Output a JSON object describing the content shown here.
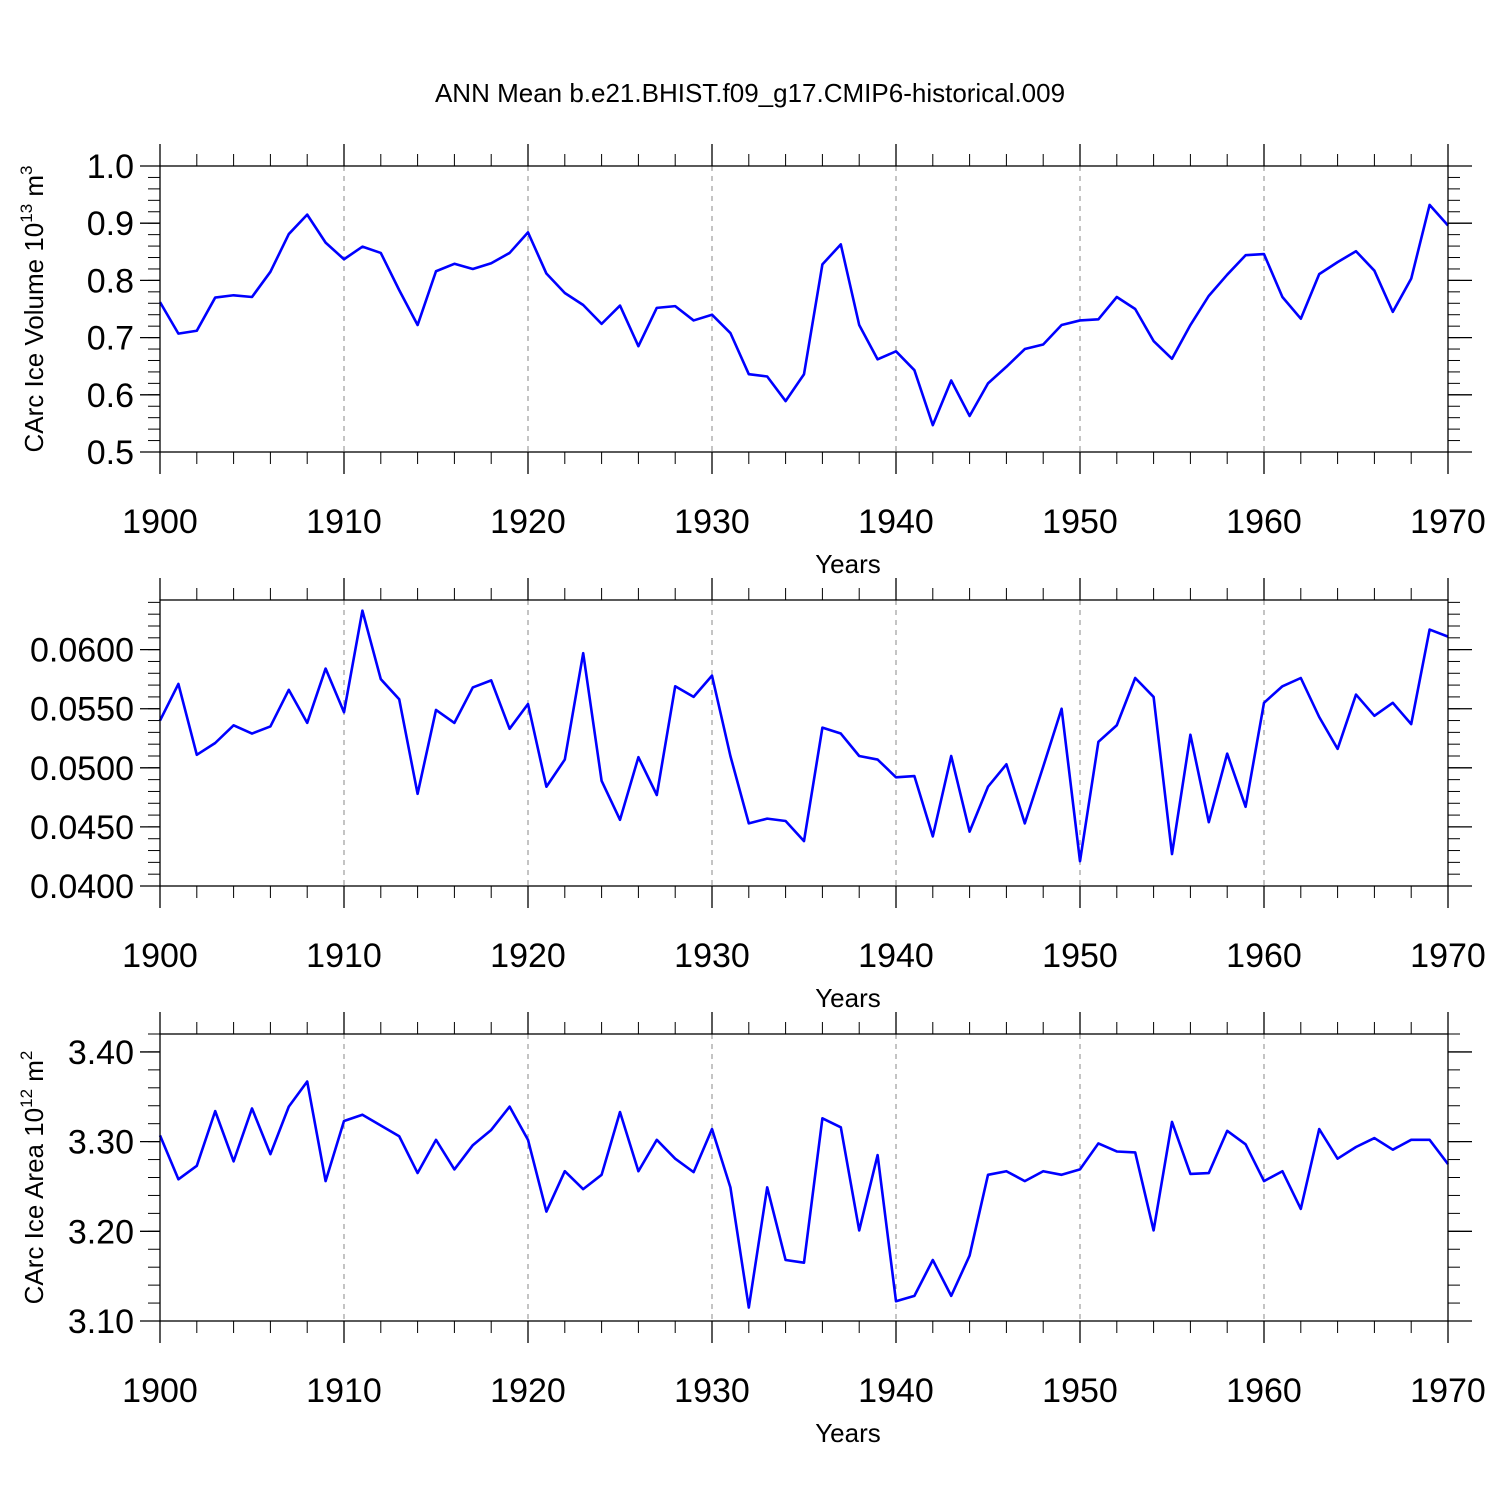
{
  "title": "ANN Mean b.e21.BHIST.f09_g17.CMIP6-historical.009",
  "chart_data": [
    {
      "type": "line",
      "xlabel": "Years",
      "ylabel": {
        "base": "CArc Ice Volume 10",
        "sup1": "13",
        "mid": " m",
        "sup2": "3"
      },
      "xlim": [
        1900,
        1970
      ],
      "ylim": [
        0.5,
        1.0
      ],
      "xticks": [
        "1900",
        "1910",
        "1920",
        "1930",
        "1940",
        "1950",
        "1960",
        "1970"
      ],
      "yticks": [
        "0.5",
        "0.6",
        "0.7",
        "0.8",
        "0.9",
        "1.0"
      ],
      "color": "#0000ff",
      "x_start": 1900,
      "values": [
        0.762,
        0.707,
        0.712,
        0.77,
        0.774,
        0.771,
        0.815,
        0.881,
        0.915,
        0.866,
        0.837,
        0.859,
        0.848,
        0.783,
        0.722,
        0.816,
        0.829,
        0.82,
        0.83,
        0.848,
        0.884,
        0.812,
        0.778,
        0.757,
        0.724,
        0.756,
        0.685,
        0.752,
        0.755,
        0.73,
        0.74,
        0.708,
        0.636,
        0.632,
        0.589,
        0.636,
        0.828,
        0.863,
        0.722,
        0.662,
        0.676,
        0.643,
        0.547,
        0.625,
        0.563,
        0.62,
        0.649,
        0.68,
        0.688,
        0.722,
        0.73,
        0.732,
        0.771,
        0.75,
        0.694,
        0.663,
        0.722,
        0.773,
        0.81,
        0.844,
        0.846,
        0.771,
        0.733,
        0.811,
        0.832,
        0.851,
        0.817,
        0.745,
        0.803,
        0.932,
        0.896
      ]
    },
    {
      "type": "line",
      "xlabel": "Years",
      "xlim": [
        1900,
        1970
      ],
      "ylim": [
        0.04,
        0.0642
      ],
      "xticks": [
        "1900",
        "1910",
        "1920",
        "1930",
        "1940",
        "1950",
        "1960",
        "1970"
      ],
      "yticks": [
        "0.0400",
        "0.0450",
        "0.0500",
        "0.0550",
        "0.0600"
      ],
      "color": "#0000ff",
      "x_start": 1900,
      "values": [
        0.054,
        0.0571,
        0.0511,
        0.0521,
        0.0536,
        0.0529,
        0.0535,
        0.0566,
        0.0538,
        0.0584,
        0.0547,
        0.0633,
        0.0575,
        0.0558,
        0.0478,
        0.0549,
        0.0538,
        0.0568,
        0.0574,
        0.0533,
        0.0554,
        0.0484,
        0.0507,
        0.0597,
        0.0489,
        0.0456,
        0.0509,
        0.0477,
        0.0569,
        0.056,
        0.0578,
        0.051,
        0.0453,
        0.0457,
        0.0455,
        0.0438,
        0.0534,
        0.0529,
        0.051,
        0.0507,
        0.0492,
        0.0493,
        0.0442,
        0.051,
        0.0446,
        0.0484,
        0.0503,
        0.0453,
        0.0501,
        0.055,
        0.0421,
        0.0522,
        0.0536,
        0.0576,
        0.056,
        0.0427,
        0.0528,
        0.0454,
        0.0512,
        0.0467,
        0.0555,
        0.0569,
        0.0576,
        0.0543,
        0.0516,
        0.0562,
        0.0544,
        0.0555,
        0.0537,
        0.0617,
        0.0611
      ]
    },
    {
      "type": "line",
      "xlabel": "Years",
      "ylabel": {
        "base": "CArc Ice Area 10",
        "sup1": "12",
        "mid": " m",
        "sup2": "2"
      },
      "xlim": [
        1900,
        1970
      ],
      "ylim": [
        3.1,
        3.42
      ],
      "xticks": [
        "1900",
        "1910",
        "1920",
        "1930",
        "1940",
        "1950",
        "1960",
        "1970"
      ],
      "yticks": [
        "3.10",
        "3.20",
        "3.30",
        "3.40"
      ],
      "color": "#0000ff",
      "x_start": 1900,
      "values": [
        3.307,
        3.258,
        3.273,
        3.334,
        3.278,
        3.337,
        3.286,
        3.339,
        3.367,
        3.256,
        3.323,
        3.33,
        3.318,
        3.306,
        3.265,
        3.302,
        3.269,
        3.296,
        3.313,
        3.339,
        3.302,
        3.222,
        3.267,
        3.247,
        3.263,
        3.333,
        3.267,
        3.302,
        3.281,
        3.266,
        3.314,
        3.249,
        3.115,
        3.249,
        3.168,
        3.165,
        3.326,
        3.316,
        3.201,
        3.285,
        3.122,
        3.128,
        3.168,
        3.128,
        3.173,
        3.263,
        3.267,
        3.256,
        3.267,
        3.263,
        3.269,
        3.298,
        3.289,
        3.288,
        3.201,
        3.322,
        3.264,
        3.265,
        3.312,
        3.297,
        3.256,
        3.267,
        3.225,
        3.314,
        3.281,
        3.294,
        3.304,
        3.291,
        3.302,
        3.302,
        3.275
      ]
    }
  ]
}
